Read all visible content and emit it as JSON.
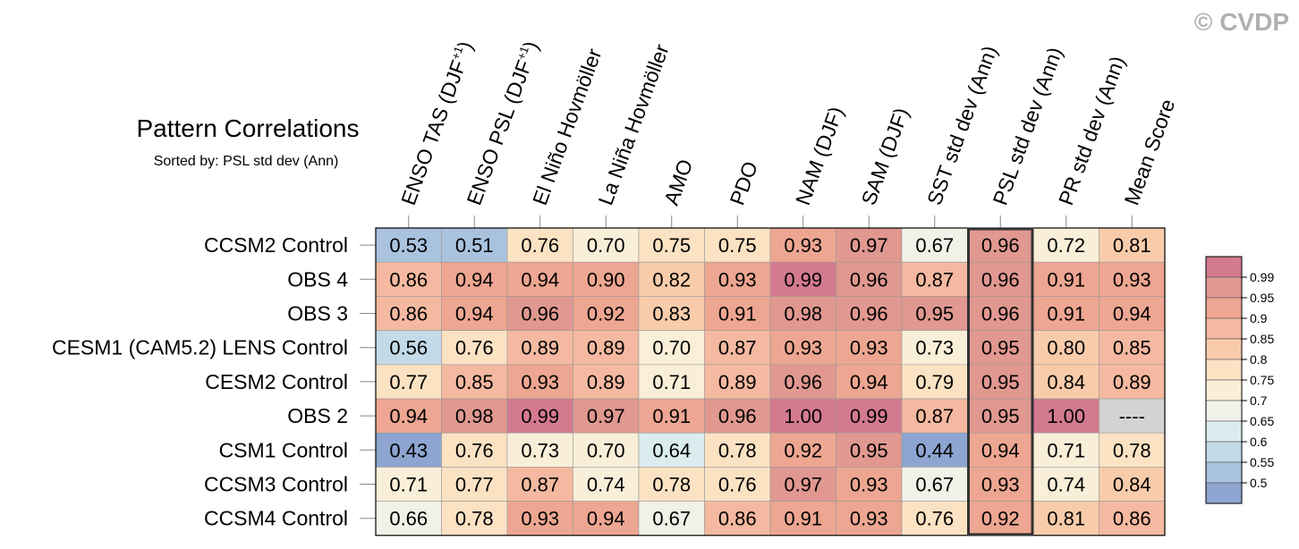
{
  "watermark": "© CVDP",
  "chart_data": {
    "type": "heatmap",
    "title": "Pattern Correlations",
    "subtitle": "Sorted by: PSL std dev (Ann)",
    "highlight_column": "PSL std dev (Ann)",
    "columns": [
      {
        "text": "ENSO TAS (DJF",
        "sup": "+1",
        "suffix": ")"
      },
      {
        "text": "ENSO PSL (DJF",
        "sup": "+1",
        "suffix": ")"
      },
      {
        "text": "El Niño Hovmöller"
      },
      {
        "text": "La Niña Hovmöller"
      },
      {
        "text": "AMO"
      },
      {
        "text": "PDO"
      },
      {
        "text": "NAM (DJF)"
      },
      {
        "text": "SAM (DJF)"
      },
      {
        "text": "SST std dev (Ann)"
      },
      {
        "text": "PSL std dev (Ann)"
      },
      {
        "text": "PR std dev (Ann)"
      },
      {
        "text": "Mean Score"
      }
    ],
    "rows": [
      {
        "label": "CCSM2 Control",
        "values": [
          "0.53",
          "0.51",
          "0.76",
          "0.70",
          "0.75",
          "0.75",
          "0.93",
          "0.97",
          "0.67",
          "0.96",
          "0.72",
          "0.81"
        ]
      },
      {
        "label": "OBS 4",
        "values": [
          "0.86",
          "0.94",
          "0.94",
          "0.90",
          "0.82",
          "0.93",
          "0.99",
          "0.96",
          "0.87",
          "0.96",
          "0.91",
          "0.93"
        ]
      },
      {
        "label": "OBS 3",
        "values": [
          "0.86",
          "0.94",
          "0.96",
          "0.92",
          "0.83",
          "0.91",
          "0.98",
          "0.96",
          "0.95",
          "0.96",
          "0.91",
          "0.94"
        ]
      },
      {
        "label": "CESM1 (CAM5.2) LENS Control",
        "values": [
          "0.56",
          "0.76",
          "0.89",
          "0.89",
          "0.70",
          "0.87",
          "0.93",
          "0.93",
          "0.73",
          "0.95",
          "0.80",
          "0.85"
        ]
      },
      {
        "label": "CESM2 Control",
        "values": [
          "0.77",
          "0.85",
          "0.93",
          "0.89",
          "0.71",
          "0.89",
          "0.96",
          "0.94",
          "0.79",
          "0.95",
          "0.84",
          "0.89"
        ]
      },
      {
        "label": "OBS 2",
        "values": [
          "0.94",
          "0.98",
          "0.99",
          "0.97",
          "0.91",
          "0.96",
          "1.00",
          "0.99",
          "0.87",
          "0.95",
          "1.00",
          "----"
        ]
      },
      {
        "label": "CSM1 Control",
        "values": [
          "0.43",
          "0.76",
          "0.73",
          "0.70",
          "0.64",
          "0.78",
          "0.92",
          "0.95",
          "0.44",
          "0.94",
          "0.71",
          "0.78"
        ]
      },
      {
        "label": "CCSM3 Control",
        "values": [
          "0.71",
          "0.77",
          "0.87",
          "0.74",
          "0.78",
          "0.76",
          "0.97",
          "0.93",
          "0.67",
          "0.93",
          "0.74",
          "0.84"
        ]
      },
      {
        "label": "CCSM4 Control",
        "values": [
          "0.66",
          "0.78",
          "0.93",
          "0.94",
          "0.67",
          "0.86",
          "0.91",
          "0.93",
          "0.76",
          "0.92",
          "0.81",
          "0.86"
        ]
      }
    ],
    "missing_value": "----",
    "colorbar": {
      "levels": [
        "0.99",
        "0.95",
        "0.9",
        "0.85",
        "0.8",
        "0.75",
        "0.7",
        "0.65",
        "0.6",
        "0.55",
        "0.5"
      ],
      "level_values": [
        0.99,
        0.95,
        0.9,
        0.85,
        0.8,
        0.75,
        0.7,
        0.65,
        0.6,
        0.55,
        0.5
      ],
      "colors_top_to_bottom": [
        "#d47a8f",
        "#e09890",
        "#eda691",
        "#f4b9a0",
        "#f8ccab",
        "#fbe2c3",
        "#f9efd9",
        "#f2f1e8",
        "#dbecef",
        "#c3dae8",
        "#a9c3df",
        "#8da5d0"
      ],
      "missing_color": "#d3d3d3"
    }
  }
}
